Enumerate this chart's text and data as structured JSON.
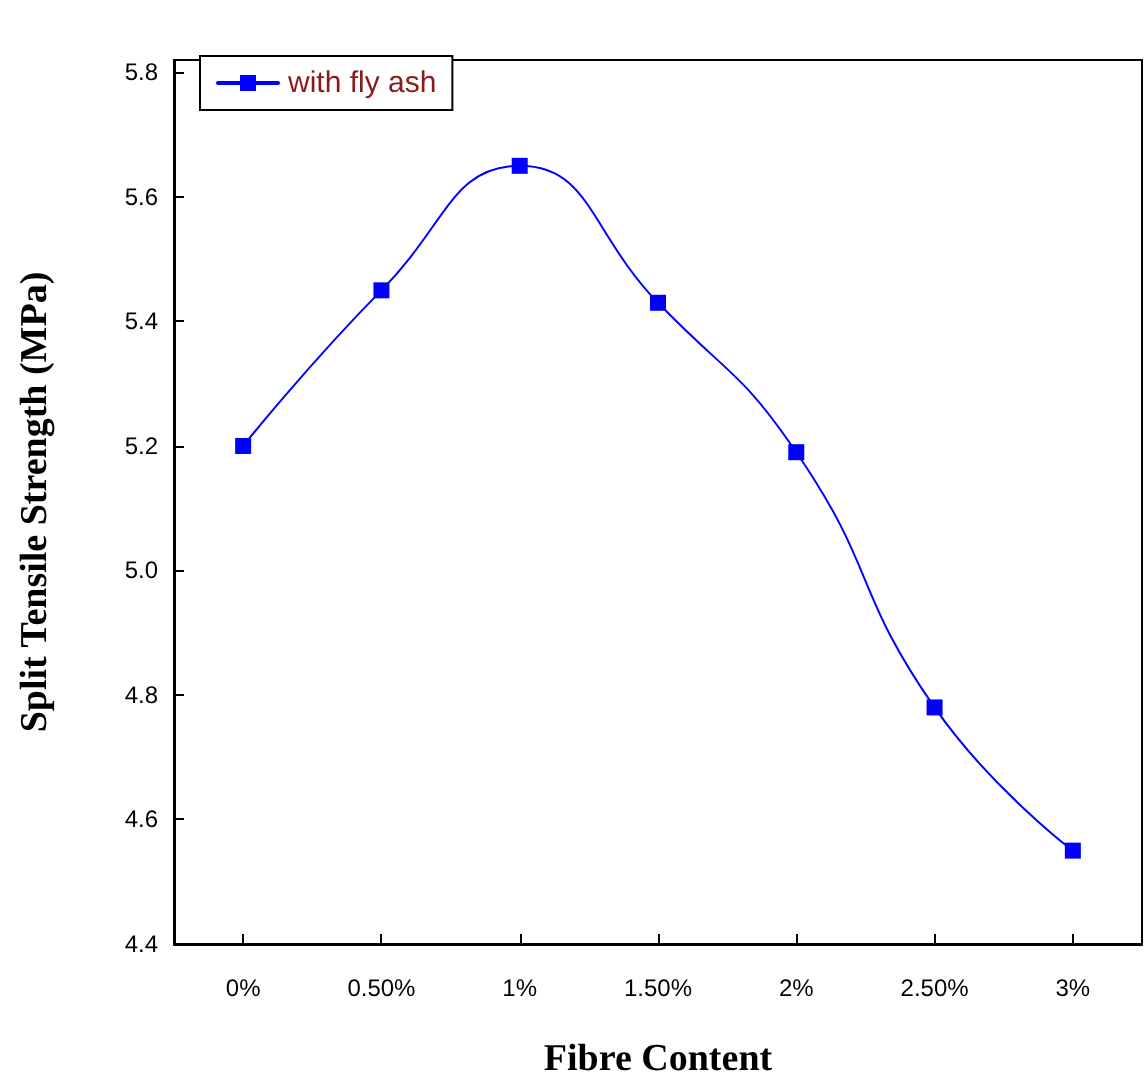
{
  "chart_data": {
    "type": "line",
    "xlabel": "Fibre Content",
    "ylabel": "Split Tensile Strength (MPa)",
    "categories": [
      "0%",
      "0.50%",
      "1%",
      "1.50%",
      "2%",
      "2.50%",
      "3%"
    ],
    "series": [
      {
        "name": "with fly ash",
        "color": "#0000ff",
        "values": [
          5.2,
          5.45,
          5.65,
          5.43,
          5.19,
          4.78,
          4.55
        ]
      }
    ],
    "ylim": [
      4.4,
      5.82
    ],
    "yticks": [
      4.4,
      4.6,
      4.8,
      {
        "value": 5.0,
        "label": "5.0"
      },
      5.2,
      5.4,
      5.6,
      5.8
    ],
    "legend": "top left",
    "marker": "square",
    "line_style": "solid",
    "grid": false
  }
}
